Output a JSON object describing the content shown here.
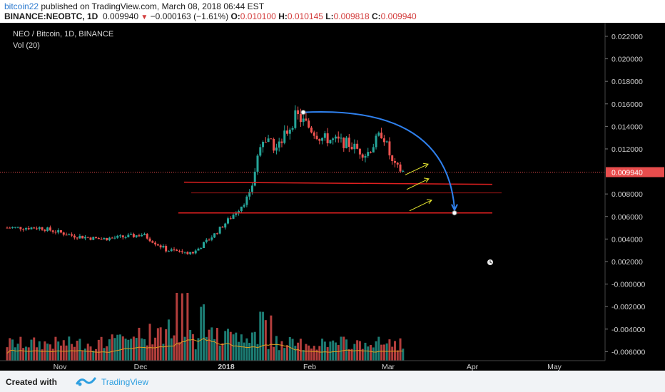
{
  "header": {
    "author": "bitcoin22",
    "published_text": " published on TradingView.com, March 08, 2018 06:44 EST",
    "symbol": "BINANCE:NEOBTC, 1D",
    "last_price": "0.009940",
    "change": "−0.000163 (−1.61%)",
    "ohlc": {
      "o_label": "O:",
      "o": "0.010100",
      "h_label": "H:",
      "h": "0.010145",
      "l_label": "L:",
      "l": "0.009818",
      "c_label": "C:",
      "c": "0.009940"
    }
  },
  "legend": {
    "title": "NEO / Bitcoin, 1D, BINANCE",
    "volume": "Vol (20)"
  },
  "footer": {
    "created_with": "Created with",
    "brand": "TradingView"
  },
  "colors": {
    "up": "#26a69a",
    "down": "#ef5350",
    "level_lines": "#e02020",
    "arc": "#2f80ed",
    "arrows": "#e8e830",
    "price_tag": "#e84d4d",
    "background": "#000000"
  },
  "chart_data": {
    "type": "candlestick",
    "title": "NEO / Bitcoin, 1D, BINANCE",
    "x_labels": [
      "Nov",
      "Dec",
      "2018",
      "Feb",
      "Mar",
      "Apr",
      "May"
    ],
    "y_ticks": [
      "0.022000",
      "0.020000",
      "0.018000",
      "0.016000",
      "0.014000",
      "0.012000",
      "0.008000",
      "0.006000",
      "0.004000",
      "0.002000",
      "-0.000000",
      "-0.002000",
      "-0.004000",
      "-0.006000"
    ],
    "ylim": [
      -0.0068,
      0.0232
    ],
    "current_price": "0.009940",
    "support_levels": [
      0.00905,
      0.00632
    ],
    "level_band": [
      0.00905,
      0.0081
    ],
    "arc": {
      "from_price": 0.01525,
      "to_price": 0.00632,
      "from_label": "Feb",
      "to_label": "Apr"
    },
    "volume_indicator": "Vol (20)",
    "price_path": [
      [
        "Oct 24",
        0.005
      ],
      [
        "Nov 5",
        0.0043
      ],
      [
        "Nov 15",
        0.004
      ],
      [
        "Nov 25",
        0.0042
      ],
      [
        "Dec 1",
        0.0044
      ],
      [
        "Dec 10",
        0.003
      ],
      [
        "Dec 20",
        0.0028
      ],
      [
        "Dec 28",
        0.0045
      ],
      [
        "Jan 5",
        0.0065
      ],
      [
        "Jan 10",
        0.008
      ],
      [
        "Jan 14",
        0.013
      ],
      [
        "Jan 20",
        0.012
      ],
      [
        "Jan 27",
        0.015
      ],
      [
        "Feb 5",
        0.013
      ],
      [
        "Feb 15",
        0.0125
      ],
      [
        "Feb 22",
        0.0115
      ],
      [
        "Feb 28",
        0.0135
      ],
      [
        "Mar 4",
        0.0105
      ],
      [
        "Mar 8",
        0.00994
      ]
    ]
  }
}
